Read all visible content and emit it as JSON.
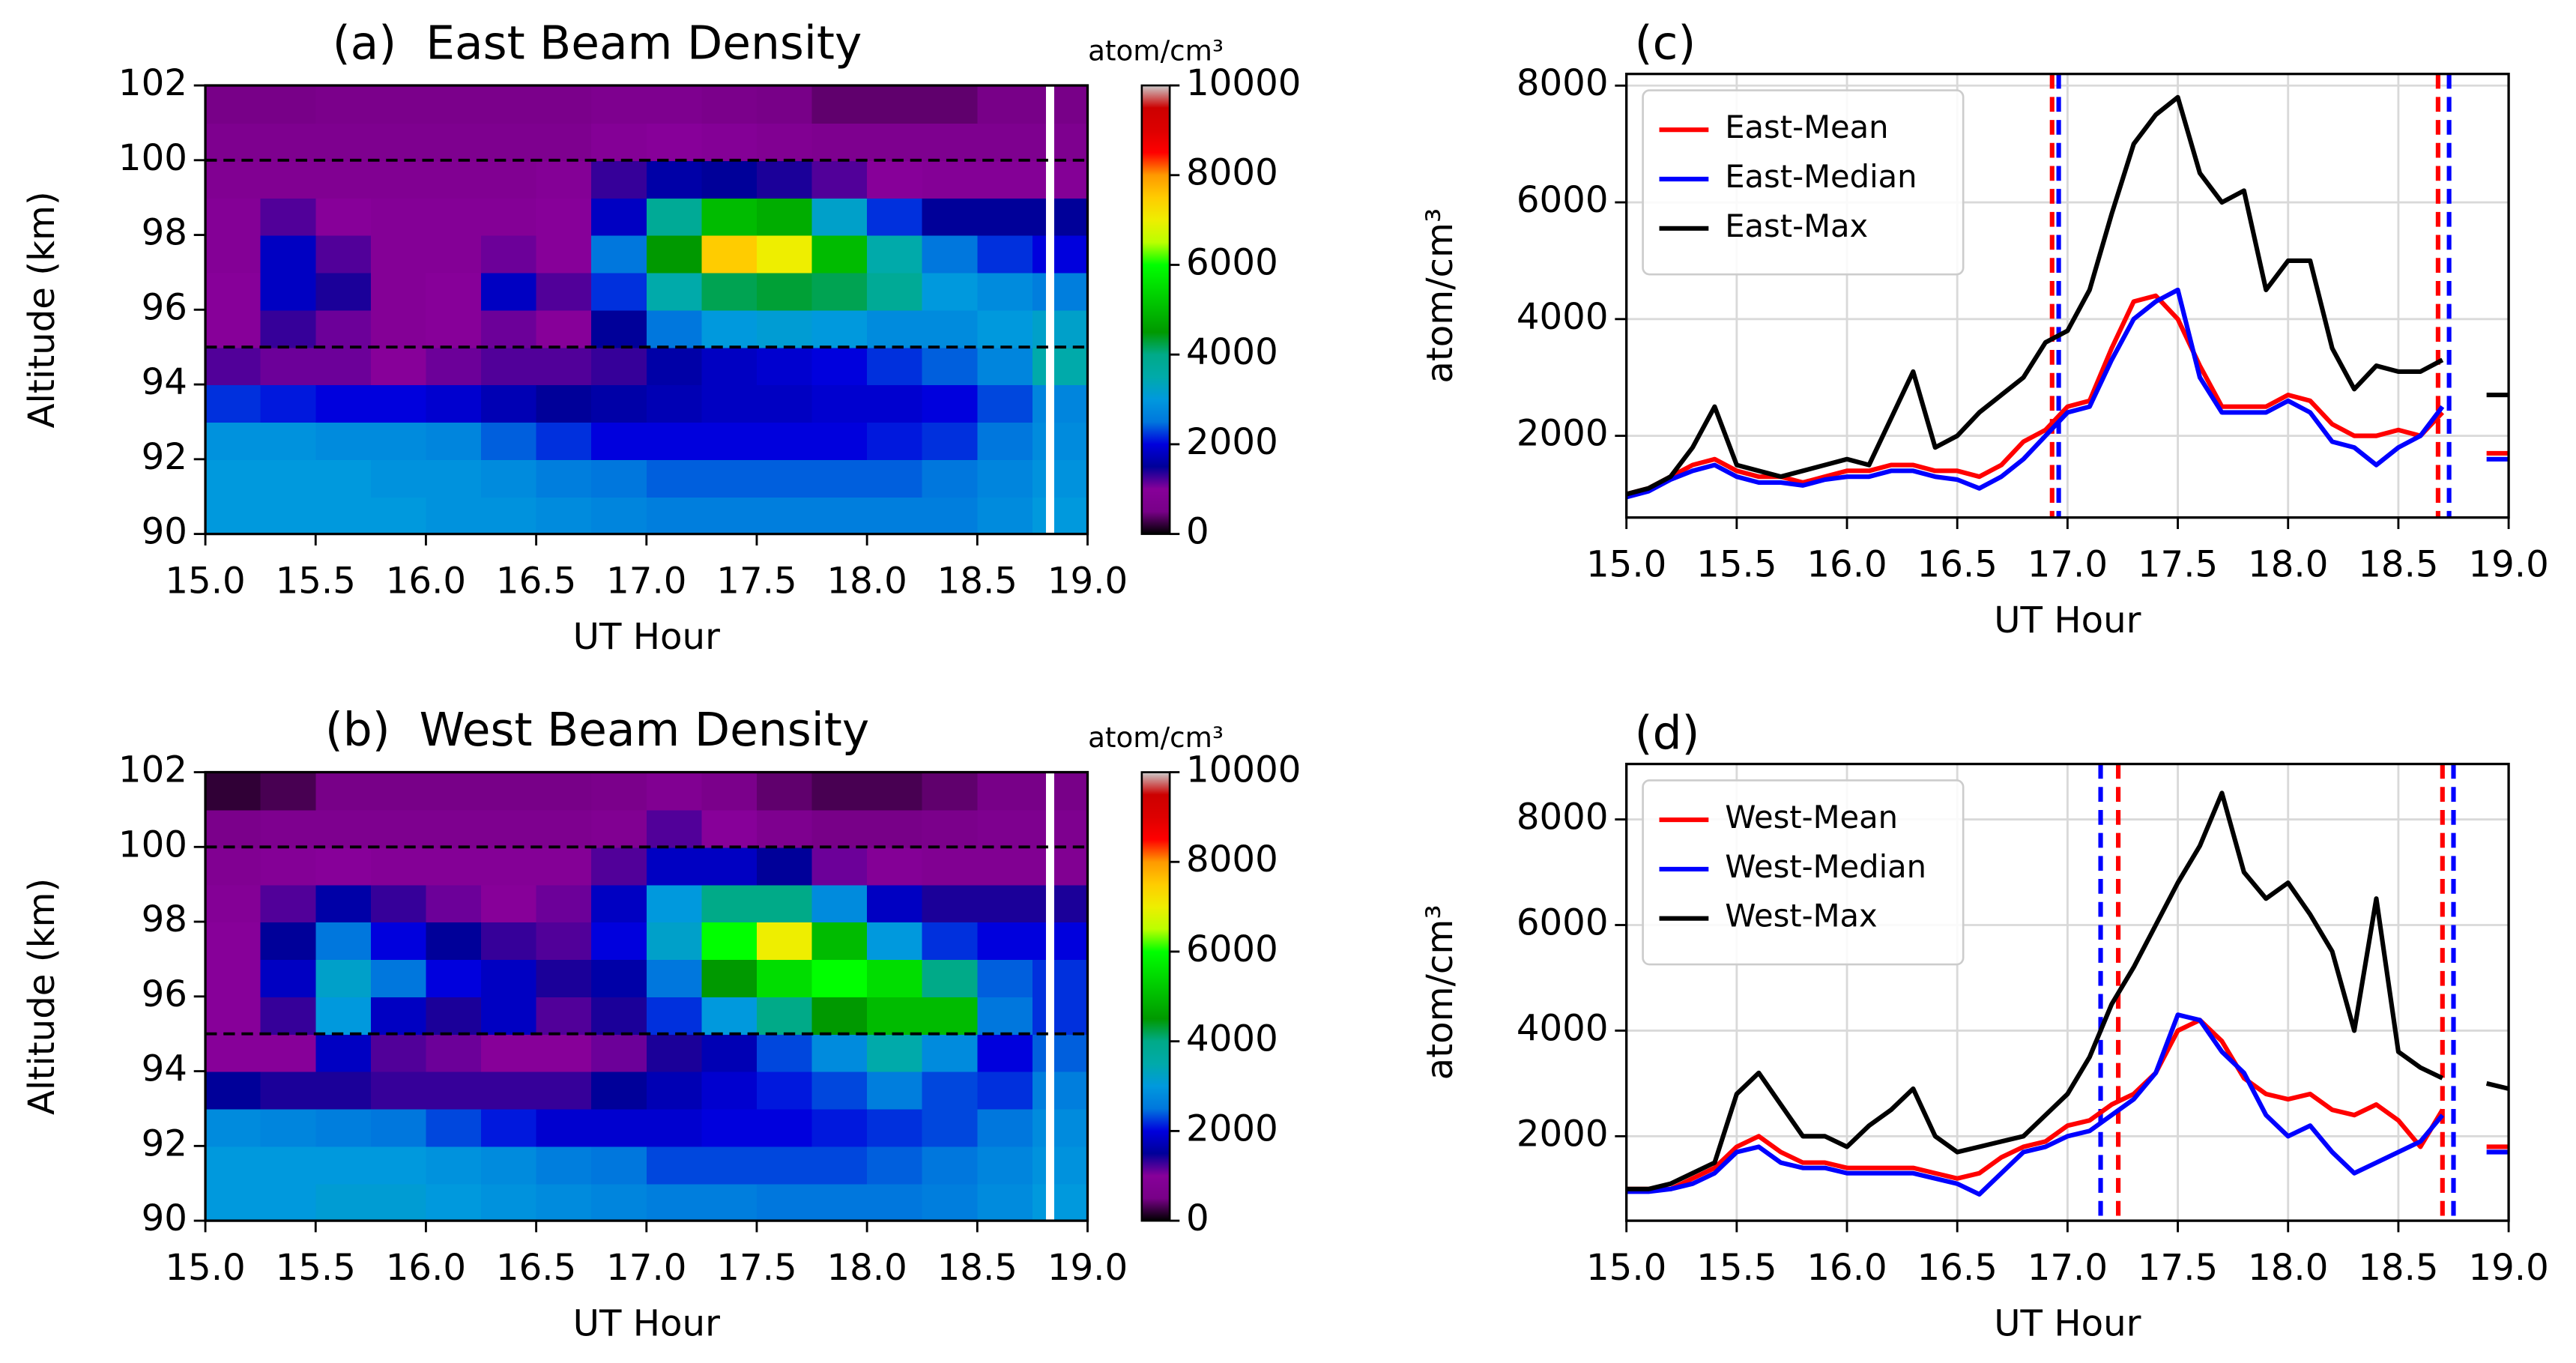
{
  "chart_data": [
    {
      "type": "heatmap",
      "title": "(a)  East Beam Density",
      "xlabel": "UT Hour",
      "ylabel": "Altitude (km)",
      "xbins": [
        15.0,
        15.25,
        15.5,
        15.75,
        16.0,
        16.25,
        16.5,
        16.75,
        17.0,
        17.25,
        17.5,
        17.75,
        18.0,
        18.25,
        18.5,
        18.75,
        19.0
      ],
      "ybins": [
        90,
        91,
        92,
        93,
        94,
        95,
        96,
        97,
        98,
        99,
        100,
        101,
        102
      ],
      "z": [
        [
          3000,
          3000,
          3000,
          3000,
          2900,
          2900,
          2800,
          2700,
          2600,
          2600,
          2600,
          2600,
          2600,
          2600,
          2800,
          3000
        ],
        [
          3000,
          3000,
          3000,
          2900,
          2900,
          2800,
          2600,
          2500,
          2400,
          2400,
          2400,
          2400,
          2400,
          2500,
          2700,
          2900
        ],
        [
          2900,
          2900,
          2800,
          2800,
          2700,
          2400,
          2200,
          2000,
          2000,
          2000,
          2000,
          2000,
          2100,
          2200,
          2500,
          2800
        ],
        [
          2200,
          2100,
          2000,
          2000,
          1900,
          1700,
          1500,
          1600,
          1700,
          1800,
          1800,
          1900,
          1900,
          2000,
          2300,
          2700
        ],
        [
          1200,
          1100,
          1100,
          1000,
          1100,
          1200,
          1200,
          1300,
          1600,
          1800,
          1900,
          2000,
          2200,
          2400,
          2700,
          3500
        ],
        [
          1000,
          1300,
          1100,
          900,
          1000,
          1100,
          1000,
          1500,
          2500,
          3000,
          3100,
          3000,
          2800,
          2800,
          3000,
          3200
        ],
        [
          1000,
          1800,
          1400,
          900,
          1000,
          1800,
          1200,
          2200,
          3500,
          4200,
          4300,
          4200,
          3800,
          3000,
          2800,
          2600
        ],
        [
          900,
          1800,
          1200,
          900,
          900,
          1100,
          1000,
          2500,
          4500,
          7500,
          7000,
          5000,
          3500,
          2500,
          2200,
          2000
        ],
        [
          900,
          1200,
          1000,
          900,
          900,
          900,
          1000,
          1800,
          3800,
          5000,
          4800,
          3200,
          2200,
          1500,
          1500,
          1500
        ],
        [
          800,
          800,
          800,
          800,
          800,
          800,
          900,
          1300,
          1600,
          1500,
          1400,
          1200,
          1000,
          900,
          900,
          900
        ],
        [
          700,
          700,
          700,
          700,
          700,
          700,
          700,
          900,
          1000,
          900,
          800,
          700,
          700,
          700,
          700,
          700
        ],
        [
          500,
          500,
          600,
          600,
          600,
          600,
          600,
          700,
          700,
          600,
          500,
          400,
          400,
          400,
          500,
          500
        ]
      ],
      "xlim": [
        15.0,
        19.0
      ],
      "ylim": [
        90,
        102
      ],
      "xticks": [
        {
          "value": 15.0,
          "label": "15.0"
        },
        15.5,
        {
          "value": 16.0,
          "label": "16.0"
        },
        16.5,
        {
          "value": 17.0,
          "label": "17.0"
        },
        17.5,
        {
          "value": 18.0,
          "label": "18.0"
        },
        18.5,
        {
          "value": 19.0,
          "label": "19.0"
        }
      ],
      "yticks": [
        90,
        92,
        94,
        96,
        98,
        100,
        102
      ],
      "hlines": [
        95,
        100
      ],
      "gap_x": 18.83,
      "colorbar": {
        "label": "atom/cm³",
        "lim": [
          0,
          10000
        ],
        "ticks": [
          0,
          2000,
          4000,
          6000,
          8000,
          10000
        ],
        "colormap": [
          "#000000",
          "#780088",
          "#870099",
          "#000099",
          "#0000dd",
          "#0077dd",
          "#0099dd",
          "#00aaaa",
          "#00aa88",
          "#009900",
          "#00bb00",
          "#00dd00",
          "#00ff00",
          "#bbff00",
          "#eeee00",
          "#ffcc00",
          "#ff9900",
          "#ff0000",
          "#dd0000",
          "#cc0000",
          "#cccccc"
        ]
      }
    },
    {
      "type": "heatmap",
      "title": "(b)  West Beam Density",
      "xlabel": "UT Hour",
      "ylabel": "Altitude (km)",
      "xbins": [
        15.0,
        15.25,
        15.5,
        15.75,
        16.0,
        16.25,
        16.5,
        16.75,
        17.0,
        17.25,
        17.5,
        17.75,
        18.0,
        18.25,
        18.5,
        18.75,
        19.0
      ],
      "ybins": [
        90,
        91,
        92,
        93,
        94,
        95,
        96,
        97,
        98,
        99,
        100,
        101,
        102
      ],
      "z": [
        [
          3000,
          3000,
          3100,
          3100,
          3000,
          2900,
          2800,
          2700,
          2600,
          2600,
          2500,
          2500,
          2500,
          2600,
          2800,
          3000
        ],
        [
          3000,
          3000,
          3000,
          3000,
          2900,
          2800,
          2600,
          2500,
          2300,
          2300,
          2300,
          2300,
          2400,
          2500,
          2700,
          2900
        ],
        [
          2800,
          2700,
          2600,
          2500,
          2300,
          2100,
          1900,
          1900,
          1900,
          2000,
          2000,
          2100,
          2200,
          2300,
          2500,
          2800
        ],
        [
          1500,
          1400,
          1400,
          1300,
          1300,
          1300,
          1300,
          1500,
          1700,
          1900,
          2100,
          2300,
          2600,
          2300,
          2200,
          2600
        ],
        [
          1000,
          1000,
          1800,
          1200,
          1100,
          1000,
          1000,
          1100,
          1400,
          1700,
          2300,
          2800,
          3500,
          2800,
          2000,
          2400
        ],
        [
          1000,
          1300,
          3000,
          1800,
          1400,
          1800,
          1200,
          1400,
          2200,
          3000,
          4000,
          4500,
          5000,
          5000,
          2500,
          2200
        ],
        [
          1000,
          1800,
          3200,
          2500,
          2000,
          1800,
          1400,
          1600,
          2500,
          4500,
          5500,
          6000,
          5500,
          4000,
          2400,
          2200
        ],
        [
          1000,
          1500,
          2500,
          2000,
          1500,
          1300,
          1200,
          2000,
          3200,
          6000,
          7000,
          5000,
          3000,
          2200,
          2000,
          2000
        ],
        [
          900,
          1200,
          1600,
          1300,
          1100,
          1000,
          1100,
          1800,
          3000,
          4000,
          4000,
          2800,
          1800,
          1400,
          1400,
          1400
        ],
        [
          800,
          900,
          1000,
          900,
          900,
          900,
          900,
          1200,
          1800,
          1800,
          1500,
          1100,
          900,
          800,
          800,
          800
        ],
        [
          600,
          700,
          700,
          700,
          700,
          700,
          700,
          800,
          1200,
          1000,
          700,
          500,
          500,
          600,
          700,
          700
        ],
        [
          200,
          300,
          500,
          500,
          500,
          500,
          500,
          600,
          800,
          600,
          400,
          300,
          300,
          400,
          500,
          500
        ]
      ],
      "xlim": [
        15.0,
        19.0
      ],
      "ylim": [
        90,
        102
      ],
      "xticks": [
        {
          "value": 15.0,
          "label": "15.0"
        },
        15.5,
        {
          "value": 16.0,
          "label": "16.0"
        },
        16.5,
        {
          "value": 17.0,
          "label": "17.0"
        },
        17.5,
        {
          "value": 18.0,
          "label": "18.0"
        },
        18.5,
        {
          "value": 19.0,
          "label": "19.0"
        }
      ],
      "yticks": [
        90,
        92,
        94,
        96,
        98,
        100,
        102
      ],
      "hlines": [
        95,
        100
      ],
      "gap_x": 18.83,
      "colorbar": {
        "label": "atom/cm³",
        "lim": [
          0,
          10000
        ],
        "ticks": [
          0,
          2000,
          4000,
          6000,
          8000,
          10000
        ],
        "colormap": [
          "#000000",
          "#780088",
          "#870099",
          "#000099",
          "#0000dd",
          "#0077dd",
          "#0099dd",
          "#00aaaa",
          "#00aa88",
          "#009900",
          "#00bb00",
          "#00dd00",
          "#00ff00",
          "#bbff00",
          "#eeee00",
          "#ffcc00",
          "#ff9900",
          "#ff0000",
          "#dd0000",
          "#cc0000",
          "#cccccc"
        ]
      }
    },
    {
      "type": "line",
      "title": "(c)",
      "xlabel": "UT Hour",
      "ylabel": "atom/cm³",
      "x": [
        15.0,
        15.1,
        15.2,
        15.3,
        15.4,
        15.5,
        15.6,
        15.7,
        15.8,
        15.9,
        16.0,
        16.1,
        16.2,
        16.3,
        16.4,
        16.5,
        16.6,
        16.7,
        16.8,
        16.9,
        17.0,
        17.1,
        17.2,
        17.3,
        17.4,
        17.5,
        17.6,
        17.7,
        17.8,
        17.9,
        18.0,
        18.1,
        18.2,
        18.3,
        18.4,
        18.5,
        18.6,
        18.7,
        18.8,
        18.9,
        19.0
      ],
      "series": [
        {
          "name": "East-Mean",
          "color": "#ff0000",
          "values": [
            1000,
            1100,
            1300,
            1500,
            1600,
            1400,
            1300,
            1300,
            1200,
            1300,
            1400,
            1400,
            1500,
            1500,
            1400,
            1400,
            1300,
            1500,
            1900,
            2100,
            2500,
            2600,
            3500,
            4300,
            4400,
            4000,
            3200,
            2500,
            2500,
            2500,
            2700,
            2600,
            2200,
            2000,
            2000,
            2100,
            2000,
            2400,
            null,
            1700,
            1700
          ]
        },
        {
          "name": "East-Median",
          "color": "#0000ff",
          "values": [
            950,
            1050,
            1250,
            1400,
            1500,
            1300,
            1200,
            1200,
            1150,
            1250,
            1300,
            1300,
            1400,
            1400,
            1300,
            1250,
            1100,
            1300,
            1600,
            2000,
            2400,
            2500,
            3300,
            4000,
            4300,
            4500,
            3000,
            2400,
            2400,
            2400,
            2600,
            2400,
            1900,
            1800,
            1500,
            1800,
            2000,
            2500,
            null,
            1600,
            1600
          ]
        },
        {
          "name": "East-Max",
          "color": "#000000",
          "values": [
            1000,
            1100,
            1300,
            1800,
            2500,
            1500,
            1400,
            1300,
            1400,
            1500,
            1600,
            1500,
            2300,
            3100,
            1800,
            2000,
            2400,
            2700,
            3000,
            3600,
            3800,
            4500,
            5800,
            7000,
            7500,
            7800,
            6500,
            6000,
            6200,
            4500,
            5000,
            5000,
            3500,
            2800,
            3200,
            3100,
            3100,
            3300,
            null,
            2700,
            2700
          ]
        }
      ],
      "xlim": [
        15.0,
        19.0
      ],
      "ylim": [
        600,
        8200
      ],
      "xticks": [
        {
          "value": 15.0,
          "label": "15.0"
        },
        15.5,
        {
          "value": 16.0,
          "label": "16.0"
        },
        16.5,
        {
          "value": 17.0,
          "label": "17.0"
        },
        17.5,
        {
          "value": 18.0,
          "label": "18.0"
        },
        18.5,
        {
          "value": 19.0,
          "label": "19.0"
        }
      ],
      "yticks": [
        2000,
        4000,
        6000,
        8000
      ],
      "grid": true,
      "legend": "upper left",
      "vlines": [
        {
          "x": 16.93,
          "color": "#ff0000"
        },
        {
          "x": 16.96,
          "color": "#0000ff"
        },
        {
          "x": 18.68,
          "color": "#ff0000"
        },
        {
          "x": 18.73,
          "color": "#0000ff"
        }
      ]
    },
    {
      "type": "line",
      "title": "(d)",
      "xlabel": "UT Hour",
      "ylabel": "atom/cm³",
      "x": [
        15.0,
        15.1,
        15.2,
        15.3,
        15.4,
        15.5,
        15.6,
        15.7,
        15.8,
        15.9,
        16.0,
        16.1,
        16.2,
        16.3,
        16.4,
        16.5,
        16.6,
        16.7,
        16.8,
        16.9,
        17.0,
        17.1,
        17.2,
        17.3,
        17.4,
        17.5,
        17.6,
        17.7,
        17.8,
        17.9,
        18.0,
        18.1,
        18.2,
        18.3,
        18.4,
        18.5,
        18.6,
        18.7,
        18.8,
        18.9,
        19.0
      ],
      "series": [
        {
          "name": "West-Mean",
          "color": "#ff0000",
          "values": [
            1000,
            1000,
            1000,
            1200,
            1400,
            1800,
            2000,
            1700,
            1500,
            1500,
            1400,
            1400,
            1400,
            1400,
            1300,
            1200,
            1300,
            1600,
            1800,
            1900,
            2200,
            2300,
            2600,
            2800,
            3200,
            4000,
            4200,
            3800,
            3100,
            2800,
            2700,
            2800,
            2500,
            2400,
            2600,
            2300,
            1800,
            2500,
            null,
            1800,
            1800
          ]
        },
        {
          "name": "West-Median",
          "color": "#0000ff",
          "values": [
            950,
            950,
            1000,
            1100,
            1300,
            1700,
            1800,
            1500,
            1400,
            1400,
            1300,
            1300,
            1300,
            1300,
            1200,
            1100,
            900,
            1300,
            1700,
            1800,
            2000,
            2100,
            2400,
            2700,
            3200,
            4300,
            4200,
            3600,
            3200,
            2400,
            2000,
            2200,
            1700,
            1300,
            1500,
            1700,
            1900,
            2400,
            null,
            1700,
            1700
          ]
        },
        {
          "name": "West-Max",
          "color": "#000000",
          "values": [
            1000,
            1000,
            1100,
            1300,
            1500,
            2800,
            3200,
            2600,
            2000,
            2000,
            1800,
            2200,
            2500,
            2900,
            2000,
            1700,
            1800,
            1900,
            2000,
            2400,
            2800,
            3500,
            4500,
            5200,
            6000,
            6800,
            7500,
            8500,
            7000,
            6500,
            6800,
            6200,
            5500,
            4000,
            6500,
            3600,
            3300,
            3100,
            null,
            3000,
            2900
          ]
        }
      ],
      "xlim": [
        15.0,
        19.0
      ],
      "ylim": [
        400,
        9050
      ],
      "xticks": [
        {
          "value": 15.0,
          "label": "15.0"
        },
        15.5,
        {
          "value": 16.0,
          "label": "16.0"
        },
        16.5,
        {
          "value": 17.0,
          "label": "17.0"
        },
        17.5,
        {
          "value": 18.0,
          "label": "18.0"
        },
        18.5,
        {
          "value": 19.0,
          "label": "19.0"
        }
      ],
      "yticks": [
        2000,
        4000,
        6000,
        8000
      ],
      "grid": true,
      "legend": "upper left",
      "vlines": [
        {
          "x": 17.15,
          "color": "#0000ff"
        },
        {
          "x": 17.23,
          "color": "#ff0000"
        },
        {
          "x": 18.7,
          "color": "#ff0000"
        },
        {
          "x": 18.75,
          "color": "#0000ff"
        }
      ]
    }
  ]
}
